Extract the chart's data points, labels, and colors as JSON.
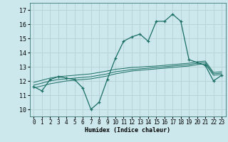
{
  "xlabel": "Humidex (Indice chaleur)",
  "bg_color": "#cce8ec",
  "grid_color": "#b8d4d8",
  "line_color": "#1a6e64",
  "x_values": [
    0,
    1,
    2,
    3,
    4,
    5,
    6,
    7,
    8,
    9,
    10,
    11,
    12,
    13,
    14,
    15,
    16,
    17,
    18,
    19,
    20,
    21,
    22,
    23
  ],
  "main_line": [
    11.6,
    11.3,
    12.1,
    12.3,
    12.2,
    12.1,
    11.5,
    10.0,
    10.5,
    12.1,
    13.6,
    14.8,
    15.1,
    15.3,
    14.8,
    16.2,
    16.2,
    16.7,
    16.2,
    13.5,
    13.3,
    13.1,
    12.0,
    12.4
  ],
  "trend_line1": [
    11.5,
    11.65,
    11.8,
    11.9,
    12.0,
    12.05,
    12.1,
    12.15,
    12.25,
    12.35,
    12.5,
    12.6,
    12.7,
    12.75,
    12.8,
    12.85,
    12.9,
    12.95,
    13.0,
    13.05,
    13.15,
    13.2,
    12.4,
    12.45
  ],
  "trend_line2": [
    11.7,
    11.85,
    12.0,
    12.1,
    12.15,
    12.2,
    12.25,
    12.3,
    12.4,
    12.5,
    12.65,
    12.72,
    12.8,
    12.85,
    12.9,
    12.95,
    13.0,
    13.05,
    13.1,
    13.15,
    13.25,
    13.3,
    12.5,
    12.55
  ],
  "trend_line3": [
    11.9,
    12.05,
    12.2,
    12.3,
    12.35,
    12.4,
    12.45,
    12.5,
    12.6,
    12.7,
    12.82,
    12.88,
    12.95,
    12.98,
    13.02,
    13.05,
    13.1,
    13.15,
    13.2,
    13.25,
    13.35,
    13.4,
    12.6,
    12.65
  ],
  "ylim": [
    9.5,
    17.5
  ],
  "yticks": [
    10,
    11,
    12,
    13,
    14,
    15,
    16,
    17
  ],
  "xlim": [
    -0.5,
    23.5
  ]
}
